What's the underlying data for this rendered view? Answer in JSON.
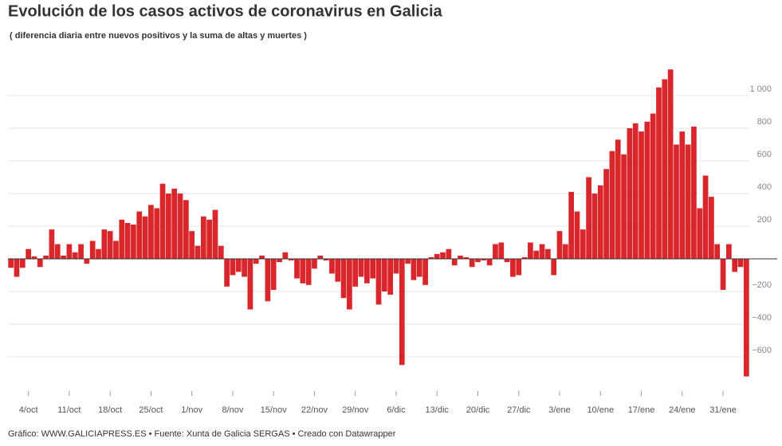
{
  "chart_data": {
    "type": "bar",
    "title": "Evolución de los casos activos de coronavirus en Galicia",
    "subtitle": "( diferencia diaria entre nuevos positivos y la suma de altas y muertes )",
    "footer": "Gráfico: WWW.GALICIAPRESS.ES • Fuente: Xunta de Galicia SERGAS • Creado con Datawrapper",
    "color": "#d8262b",
    "grid": true,
    "categories": [
      null,
      null,
      null,
      "4/oct",
      null,
      null,
      null,
      null,
      null,
      null,
      "11/oct",
      null,
      null,
      null,
      null,
      null,
      null,
      "18/oct",
      null,
      null,
      null,
      null,
      null,
      null,
      "25/oct",
      null,
      null,
      null,
      null,
      null,
      null,
      "1/nov",
      null,
      null,
      null,
      null,
      null,
      null,
      "8/nov",
      null,
      null,
      null,
      null,
      null,
      null,
      "15/nov",
      null,
      null,
      null,
      null,
      null,
      null,
      "22/nov",
      null,
      null,
      null,
      null,
      null,
      null,
      "29/nov",
      null,
      null,
      null,
      null,
      null,
      null,
      "6/dic",
      null,
      null,
      null,
      null,
      null,
      null,
      "13/dic",
      null,
      null,
      null,
      null,
      null,
      null,
      "20/dic",
      null,
      null,
      null,
      null,
      null,
      null,
      "27/dic",
      null,
      null,
      null,
      null,
      null,
      null,
      "3/ene",
      null,
      null,
      null,
      null,
      null,
      null,
      "10/ene",
      null,
      null,
      null,
      null,
      null,
      null,
      "17/ene",
      null,
      null,
      null,
      null,
      null,
      null,
      "24/ene",
      null,
      null,
      null,
      null,
      null,
      null,
      "31/ene",
      null,
      null,
      null,
      null
    ],
    "values": [
      -55,
      -110,
      -55,
      60,
      15,
      -50,
      20,
      180,
      90,
      20,
      90,
      40,
      90,
      -30,
      110,
      60,
      180,
      170,
      110,
      240,
      220,
      210,
      290,
      260,
      330,
      310,
      460,
      400,
      430,
      400,
      360,
      170,
      80,
      260,
      240,
      300,
      80,
      -170,
      -100,
      -80,
      -110,
      -310,
      -30,
      20,
      -260,
      -190,
      -20,
      40,
      -10,
      -120,
      -150,
      -160,
      -60,
      20,
      -10,
      -90,
      -140,
      -240,
      -310,
      -170,
      -110,
      -150,
      -120,
      -280,
      -200,
      -220,
      -90,
      -650,
      -30,
      -130,
      -110,
      -160,
      10,
      30,
      40,
      60,
      -40,
      20,
      10,
      -50,
      -20,
      -10,
      -40,
      90,
      100,
      -20,
      -110,
      -100,
      10,
      100,
      50,
      90,
      60,
      -100,
      170,
      90,
      410,
      290,
      180,
      500,
      400,
      450,
      550,
      660,
      730,
      640,
      800,
      830,
      780,
      840,
      890,
      1050,
      1100,
      1160,
      700,
      780,
      700,
      810,
      310,
      510,
      380,
      90,
      -190,
      90,
      -80,
      -50,
      -720
    ],
    "ylim": [
      -800,
      1200
    ],
    "yticks": [
      {
        "value": -600,
        "label": "−600"
      },
      {
        "value": -400,
        "label": "−400"
      },
      {
        "value": -200,
        "label": "−200"
      },
      200,
      400,
      600,
      800,
      {
        "value": 1000,
        "label": "1 000"
      }
    ]
  }
}
